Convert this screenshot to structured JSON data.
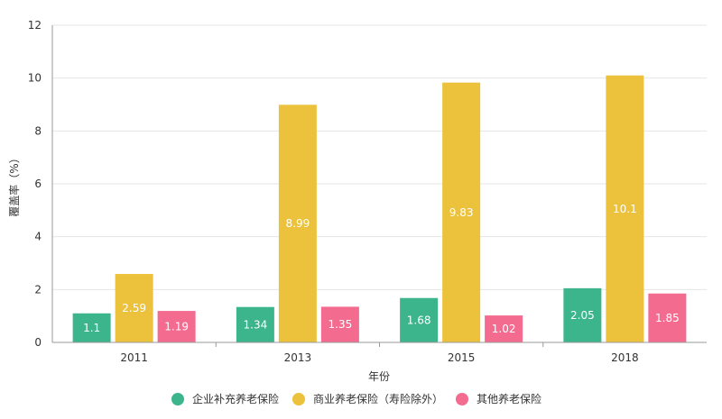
{
  "chart_data": {
    "type": "bar",
    "title": "",
    "xlabel": "年份",
    "ylabel": "覆盖率（%）",
    "ylim": [
      0,
      12
    ],
    "yticks": [
      0,
      2,
      4,
      6,
      8,
      10,
      12
    ],
    "grid": true,
    "legend_position": "bottom",
    "categories": [
      "2011",
      "2013",
      "2015",
      "2018"
    ],
    "series": [
      {
        "name": "企业补充养老保险",
        "color": "#3cb58d",
        "values": [
          1.1,
          1.34,
          1.68,
          2.05
        ]
      },
      {
        "name": "商业养老保险（寿险除外）",
        "color": "#ecc23c",
        "values": [
          2.59,
          8.99,
          9.83,
          10.1
        ]
      },
      {
        "name": "其他养老保险",
        "color": "#f36b8f",
        "values": [
          1.19,
          1.35,
          1.02,
          1.85
        ]
      }
    ]
  }
}
